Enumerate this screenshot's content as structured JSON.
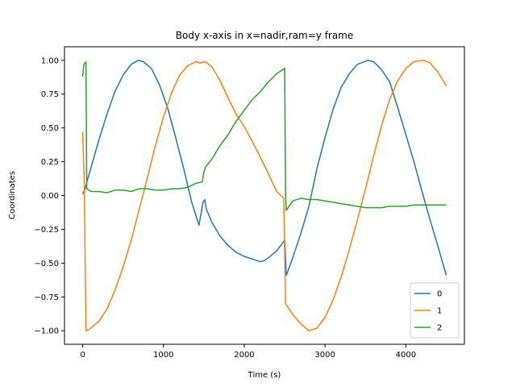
{
  "chart_data": {
    "type": "line",
    "title": "Body x-axis in x=nadir,ram=y frame",
    "xlabel": "Time (s)",
    "ylabel": "Coordinates",
    "xlim": [
      -225,
      4725
    ],
    "ylim": [
      -1.1,
      1.1
    ],
    "xticks": [
      0,
      1000,
      2000,
      3000,
      4000
    ],
    "yticks": [
      -1.0,
      -0.75,
      -0.5,
      -0.25,
      0.0,
      0.25,
      0.5,
      0.75,
      1.0
    ],
    "xtick_labels": [
      "0",
      "1000",
      "2000",
      "3000",
      "4000"
    ],
    "ytick_labels": [
      "−1.00",
      "−0.75",
      "−0.50",
      "−0.25",
      "0.00",
      "0.25",
      "0.50",
      "0.75",
      "1.00"
    ],
    "grid": false,
    "legend_position": "lower-right",
    "series": [
      {
        "name": "0",
        "color": "#1f77b4",
        "points": [
          [
            0,
            0.01
          ],
          [
            30,
            0.05
          ],
          [
            60,
            0.12
          ],
          [
            100,
            0.2
          ],
          [
            200,
            0.41
          ],
          [
            300,
            0.6
          ],
          [
            400,
            0.77
          ],
          [
            500,
            0.89
          ],
          [
            600,
            0.97
          ],
          [
            690,
            1.0
          ],
          [
            750,
            0.99
          ],
          [
            850,
            0.94
          ],
          [
            950,
            0.82
          ],
          [
            1050,
            0.65
          ],
          [
            1150,
            0.43
          ],
          [
            1250,
            0.2
          ],
          [
            1350,
            -0.05
          ],
          [
            1440,
            -0.22
          ],
          [
            1490,
            -0.05
          ],
          [
            1510,
            -0.03
          ],
          [
            1530,
            -0.1
          ],
          [
            1600,
            -0.2
          ],
          [
            1700,
            -0.3
          ],
          [
            1800,
            -0.37
          ],
          [
            1900,
            -0.42
          ],
          [
            2000,
            -0.45
          ],
          [
            2100,
            -0.47
          ],
          [
            2200,
            -0.49
          ],
          [
            2250,
            -0.48
          ],
          [
            2300,
            -0.46
          ],
          [
            2400,
            -0.41
          ],
          [
            2500,
            -0.33
          ],
          [
            2520,
            -0.59
          ],
          [
            2600,
            -0.46
          ],
          [
            2700,
            -0.28
          ],
          [
            2800,
            -0.08
          ],
          [
            2900,
            0.2
          ],
          [
            3000,
            0.43
          ],
          [
            3100,
            0.64
          ],
          [
            3200,
            0.8
          ],
          [
            3300,
            0.9
          ],
          [
            3400,
            0.97
          ],
          [
            3530,
            1.0
          ],
          [
            3600,
            0.99
          ],
          [
            3700,
            0.93
          ],
          [
            3800,
            0.84
          ],
          [
            3900,
            0.65
          ],
          [
            4000,
            0.45
          ],
          [
            4100,
            0.25
          ],
          [
            4200,
            0.03
          ],
          [
            4300,
            -0.18
          ],
          [
            4400,
            -0.38
          ],
          [
            4500,
            -0.59
          ]
        ]
      },
      {
        "name": "1",
        "color": "#ff7f0e",
        "points": [
          [
            0,
            0.47
          ],
          [
            20,
            0.1
          ],
          [
            40,
            -1.0
          ],
          [
            80,
            -0.99
          ],
          [
            200,
            -0.93
          ],
          [
            300,
            -0.84
          ],
          [
            400,
            -0.7
          ],
          [
            500,
            -0.53
          ],
          [
            600,
            -0.33
          ],
          [
            700,
            -0.1
          ],
          [
            800,
            0.13
          ],
          [
            900,
            0.37
          ],
          [
            1000,
            0.58
          ],
          [
            1100,
            0.76
          ],
          [
            1200,
            0.89
          ],
          [
            1300,
            0.96
          ],
          [
            1400,
            0.99
          ],
          [
            1450,
            0.98
          ],
          [
            1520,
            0.99
          ],
          [
            1600,
            0.95
          ],
          [
            1700,
            0.85
          ],
          [
            1800,
            0.72
          ],
          [
            1900,
            0.6
          ],
          [
            2000,
            0.51
          ],
          [
            2100,
            0.4
          ],
          [
            2200,
            0.28
          ],
          [
            2300,
            0.16
          ],
          [
            2400,
            0.03
          ],
          [
            2490,
            -0.02
          ],
          [
            2510,
            -0.8
          ],
          [
            2600,
            -0.88
          ],
          [
            2700,
            -0.95
          ],
          [
            2800,
            -1.0
          ],
          [
            2900,
            -0.98
          ],
          [
            3000,
            -0.9
          ],
          [
            3100,
            -0.77
          ],
          [
            3200,
            -0.6
          ],
          [
            3300,
            -0.4
          ],
          [
            3400,
            -0.18
          ],
          [
            3500,
            0.05
          ],
          [
            3600,
            0.29
          ],
          [
            3700,
            0.52
          ],
          [
            3800,
            0.71
          ],
          [
            3900,
            0.85
          ],
          [
            4000,
            0.94
          ],
          [
            4100,
            0.99
          ],
          [
            4220,
            1.0
          ],
          [
            4300,
            0.98
          ],
          [
            4400,
            0.91
          ],
          [
            4500,
            0.81
          ]
        ]
      },
      {
        "name": "2",
        "color": "#2ca02c",
        "points": [
          [
            0,
            0.88
          ],
          [
            15,
            0.97
          ],
          [
            30,
            0.98
          ],
          [
            40,
            0.99
          ],
          [
            50,
            0.05
          ],
          [
            100,
            0.03
          ],
          [
            200,
            0.03
          ],
          [
            300,
            0.02
          ],
          [
            400,
            0.04
          ],
          [
            500,
            0.04
          ],
          [
            600,
            0.03
          ],
          [
            700,
            0.05
          ],
          [
            800,
            0.05
          ],
          [
            900,
            0.04
          ],
          [
            1000,
            0.04
          ],
          [
            1100,
            0.05
          ],
          [
            1200,
            0.05
          ],
          [
            1300,
            0.06
          ],
          [
            1400,
            0.09
          ],
          [
            1480,
            0.1
          ],
          [
            1500,
            0.17
          ],
          [
            1520,
            0.21
          ],
          [
            1600,
            0.27
          ],
          [
            1700,
            0.37
          ],
          [
            1800,
            0.45
          ],
          [
            1900,
            0.55
          ],
          [
            2000,
            0.63
          ],
          [
            2100,
            0.71
          ],
          [
            2200,
            0.77
          ],
          [
            2300,
            0.84
          ],
          [
            2400,
            0.9
          ],
          [
            2500,
            0.94
          ],
          [
            2510,
            0.02
          ],
          [
            2520,
            -0.11
          ],
          [
            2600,
            -0.04
          ],
          [
            2700,
            -0.02
          ],
          [
            2800,
            -0.03
          ],
          [
            2900,
            -0.03
          ],
          [
            3000,
            -0.04
          ],
          [
            3100,
            -0.05
          ],
          [
            3200,
            -0.06
          ],
          [
            3300,
            -0.07
          ],
          [
            3400,
            -0.08
          ],
          [
            3500,
            -0.09
          ],
          [
            3600,
            -0.09
          ],
          [
            3700,
            -0.09
          ],
          [
            3800,
            -0.08
          ],
          [
            3900,
            -0.08
          ],
          [
            4000,
            -0.08
          ],
          [
            4100,
            -0.07
          ],
          [
            4200,
            -0.07
          ],
          [
            4300,
            -0.07
          ],
          [
            4400,
            -0.07
          ],
          [
            4500,
            -0.07
          ]
        ]
      }
    ]
  }
}
